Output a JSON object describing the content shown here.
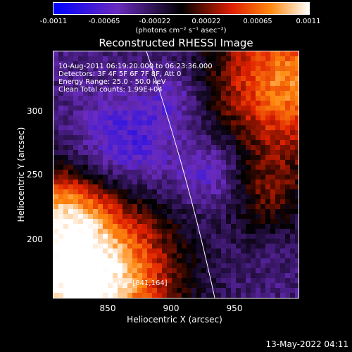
{
  "colorbar": {
    "ticks": [
      "-0.0011",
      "-0.00065",
      "-0.00022",
      "0.00022",
      "0.00065",
      "0.0011"
    ],
    "unit": "(photons cm⁻² s⁻¹ asec⁻²)",
    "vmin": -0.0011,
    "vmax": 0.0011
  },
  "title": "Reconstructed RHESSI Image",
  "info": {
    "time_range": "10-Aug-2011 06:19:20.000 to 06:23:36.000",
    "detectors": "Detectors: 3F 4F 5F 6F 7F 8F, Att 0",
    "energy": "Energy Range: 25.0 - 50.0 keV",
    "method": "Clean    Total counts: 1.99E+04",
    "peak": "Position of Peak = [841,164]"
  },
  "axes": {
    "xlabel": "Heliocentric X (arcsec)",
    "ylabel": "Heliocentric Y (arcsec)",
    "xticks": [
      "850",
      "900",
      "950"
    ],
    "yticks": [
      "300",
      "250",
      "200"
    ]
  },
  "timestamp": "13-May-2022 04:11",
  "colors": {
    "min": "#0000ff",
    "neg_mid": "#6a2bbf",
    "zero": "#000000",
    "pos_mid": "#e02000",
    "high": "#ff8a10",
    "max": "#ffffff"
  }
}
